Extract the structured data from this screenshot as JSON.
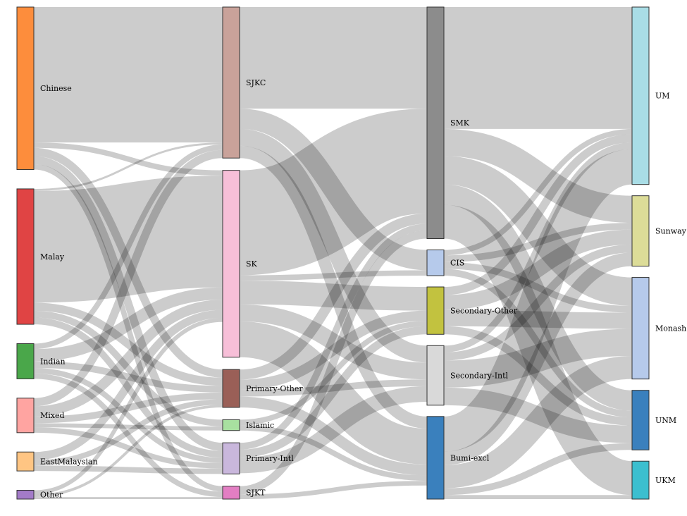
{
  "chart_data": {
    "type": "sankey",
    "columns": [
      [
        "Chinese",
        "Malay",
        "Indian",
        "Mixed",
        "EastMalaysian",
        "Other"
      ],
      [
        "SJKC",
        "SK",
        "Primary-Other",
        "Islamic",
        "Primary-Intl",
        "SJKT"
      ],
      [
        "SMK",
        "CIS",
        "Secondary-Other",
        "Secondary-Intl",
        "Bumi-excl"
      ],
      [
        "UM",
        "Sunway",
        "Monash",
        "UNM",
        "UKM"
      ]
    ],
    "nodes": [
      {
        "name": "Chinese",
        "color": "#fd8d3c"
      },
      {
        "name": "Malay",
        "color": "#e04444"
      },
      {
        "name": "Indian",
        "color": "#4aa74a"
      },
      {
        "name": "Mixed",
        "color": "#ffa4a1"
      },
      {
        "name": "EastMalaysian",
        "color": "#ffc583"
      },
      {
        "name": "Other",
        "color": "#a37bc8"
      },
      {
        "name": "SJKC",
        "color": "#c9a29a"
      },
      {
        "name": "SK",
        "color": "#f7bfd8"
      },
      {
        "name": "Primary-Other",
        "color": "#9a5f57"
      },
      {
        "name": "Islamic",
        "color": "#a8e0a0"
      },
      {
        "name": "Primary-Intl",
        "color": "#c9b7dc"
      },
      {
        "name": "SJKT",
        "color": "#e37ec3"
      },
      {
        "name": "SMK",
        "color": "#8c8c8c"
      },
      {
        "name": "CIS",
        "color": "#b6caeb"
      },
      {
        "name": "Secondary-Other",
        "color": "#c2c23f"
      },
      {
        "name": "Secondary-Intl",
        "color": "#d9d9d9"
      },
      {
        "name": "Bumi-excl",
        "color": "#3a80bd"
      },
      {
        "name": "UM",
        "color": "#a9dde6"
      },
      {
        "name": "Sunway",
        "color": "#dcdc98"
      },
      {
        "name": "Monash",
        "color": "#b6caeb"
      },
      {
        "name": "UNM",
        "color": "#3a80bd"
      },
      {
        "name": "UKM",
        "color": "#3cbfcf"
      }
    ],
    "links": [
      {
        "source": "Chinese",
        "target": "SJKC",
        "value": 200
      },
      {
        "source": "Chinese",
        "target": "SK",
        "value": 8
      },
      {
        "source": "Chinese",
        "target": "Primary-Other",
        "value": 12
      },
      {
        "source": "Chinese",
        "target": "Primary-Intl",
        "value": 12
      },
      {
        "source": "Chinese",
        "target": "SJKT",
        "value": 8
      },
      {
        "source": "Malay",
        "target": "SJKC",
        "value": 3
      },
      {
        "source": "Malay",
        "target": "SK",
        "value": 165
      },
      {
        "source": "Malay",
        "target": "Primary-Other",
        "value": 12
      },
      {
        "source": "Malay",
        "target": "Islamic",
        "value": 10
      },
      {
        "source": "Malay",
        "target": "Primary-Intl",
        "value": 10
      },
      {
        "source": "Indian",
        "target": "SJKC",
        "value": 8
      },
      {
        "source": "Indian",
        "target": "SK",
        "value": 18
      },
      {
        "source": "Indian",
        "target": "Primary-Other",
        "value": 10
      },
      {
        "source": "Indian",
        "target": "Primary-Intl",
        "value": 8
      },
      {
        "source": "Indian",
        "target": "SJKT",
        "value": 8
      },
      {
        "source": "Mixed",
        "target": "SJKC",
        "value": 12
      },
      {
        "source": "Mixed",
        "target": "SK",
        "value": 15
      },
      {
        "source": "Mixed",
        "target": "Primary-Other",
        "value": 10
      },
      {
        "source": "Mixed",
        "target": "Islamic",
        "value": 6
      },
      {
        "source": "Mixed",
        "target": "Primary-Intl",
        "value": 8
      },
      {
        "source": "EastMalaysian",
        "target": "SK",
        "value": 12
      },
      {
        "source": "EastMalaysian",
        "target": "Primary-Other",
        "value": 8
      },
      {
        "source": "EastMalaysian",
        "target": "Primary-Intl",
        "value": 8
      },
      {
        "source": "Other",
        "target": "SK",
        "value": 6
      },
      {
        "source": "Other",
        "target": "Primary-Other",
        "value": 4
      },
      {
        "source": "Other",
        "target": "SJKT",
        "value": 3
      },
      {
        "source": "SJKC",
        "target": "SMK",
        "value": 150
      },
      {
        "source": "SJKC",
        "target": "CIS",
        "value": 30
      },
      {
        "source": "SJKC",
        "target": "Secondary-Intl",
        "value": 25
      },
      {
        "source": "SJKC",
        "target": "Bumi-excl",
        "value": 18
      },
      {
        "source": "SK",
        "target": "SMK",
        "value": 155
      },
      {
        "source": "SK",
        "target": "CIS",
        "value": 8
      },
      {
        "source": "SK",
        "target": "Secondary-Other",
        "value": 35
      },
      {
        "source": "SK",
        "target": "Secondary-Intl",
        "value": 25
      },
      {
        "source": "SK",
        "target": "Bumi-excl",
        "value": 53
      },
      {
        "source": "Primary-Other",
        "target": "SMK",
        "value": 15
      },
      {
        "source": "Primary-Other",
        "target": "Secondary-Other",
        "value": 15
      },
      {
        "source": "Primary-Other",
        "target": "Secondary-Intl",
        "value": 10
      },
      {
        "source": "Primary-Other",
        "target": "Bumi-excl",
        "value": 16
      },
      {
        "source": "Islamic",
        "target": "Secondary-Other",
        "value": 8
      },
      {
        "source": "Islamic",
        "target": "Bumi-excl",
        "value": 8
      },
      {
        "source": "Primary-Intl",
        "target": "SMK",
        "value": 10
      },
      {
        "source": "Primary-Intl",
        "target": "Secondary-Other",
        "value": 12
      },
      {
        "source": "Primary-Intl",
        "target": "Secondary-Intl",
        "value": 23
      },
      {
        "source": "SJKT",
        "target": "SMK",
        "value": 12
      },
      {
        "source": "SJKT",
        "target": "Bumi-excl",
        "value": 7
      },
      {
        "source": "SMK",
        "target": "UM",
        "value": 180
      },
      {
        "source": "SMK",
        "target": "Sunway",
        "value": 40
      },
      {
        "source": "SMK",
        "target": "Monash",
        "value": 42
      },
      {
        "source": "SMK",
        "target": "UNM",
        "value": 30
      },
      {
        "source": "SMK",
        "target": "UKM",
        "value": 50
      },
      {
        "source": "CIS",
        "target": "UM",
        "value": 8
      },
      {
        "source": "CIS",
        "target": "Sunway",
        "value": 10
      },
      {
        "source": "CIS",
        "target": "Monash",
        "value": 10
      },
      {
        "source": "CIS",
        "target": "UNM",
        "value": 10
      },
      {
        "source": "Secondary-Other",
        "target": "UM",
        "value": 12
      },
      {
        "source": "Secondary-Other",
        "target": "Sunway",
        "value": 22
      },
      {
        "source": "Secondary-Other",
        "target": "Monash",
        "value": 24
      },
      {
        "source": "Secondary-Other",
        "target": "UNM",
        "value": 12
      },
      {
        "source": "Secondary-Intl",
        "target": "UM",
        "value": 10
      },
      {
        "source": "Secondary-Intl",
        "target": "Sunway",
        "value": 12
      },
      {
        "source": "Secondary-Intl",
        "target": "Monash",
        "value": 40
      },
      {
        "source": "Secondary-Intl",
        "target": "UNM",
        "value": 26
      },
      {
        "source": "Bumi-excl",
        "target": "UM",
        "value": 52
      },
      {
        "source": "Bumi-excl",
        "target": "Sunway",
        "value": 20
      },
      {
        "source": "Bumi-excl",
        "target": "Monash",
        "value": 34
      },
      {
        "source": "Bumi-excl",
        "target": "UNM",
        "value": 10
      },
      {
        "source": "Bumi-excl",
        "target": "UKM",
        "value": 6
      }
    ]
  }
}
